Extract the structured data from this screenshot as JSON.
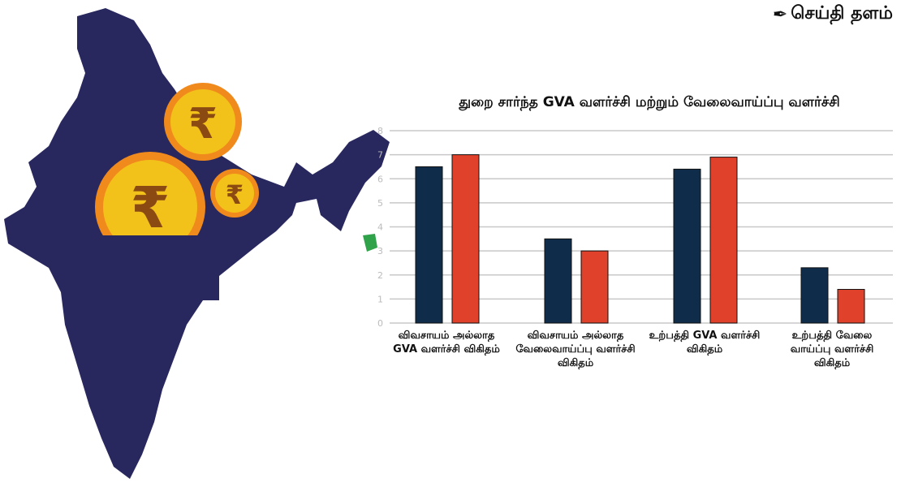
{
  "logo": {
    "text": "செய்தி தளம்",
    "icon": "pen-nib-icon"
  },
  "chart_data": {
    "type": "bar",
    "title": "துறை சார்ந்த GVA வளர்ச்சி மற்றும் வேலைவாய்ப்பு வளர்ச்சி",
    "categories": [
      "விவசாயம் அல்லாத GVA வளர்ச்சி விகிதம்",
      "விவசாயம் அல்லாத வேலைவாய்ப்பு வளர்ச்சி விகிதம்",
      "உற்பத்தி GVA வளர்ச்சி விகிதம்",
      "உற்பத்தி வேலை வாய்ப்பு வளர்ச்சி விகிதம்"
    ],
    "series": [
      {
        "values": [
          6.5,
          3.5,
          6.4,
          2.3
        ],
        "color": "#0f2d4a"
      },
      {
        "values": [
          7.0,
          3.0,
          6.9,
          1.4
        ],
        "color": "#e0412a"
      }
    ],
    "yticks": [
      0,
      1,
      2,
      3,
      4,
      5,
      6,
      7,
      8
    ],
    "ylim": [
      0,
      8
    ],
    "grid": true,
    "legend": "none"
  },
  "decor": {
    "map_color": "#28285f",
    "coin_color": "#f3c21a",
    "coin_rim": "#f08a1c",
    "rupee": "₹"
  }
}
